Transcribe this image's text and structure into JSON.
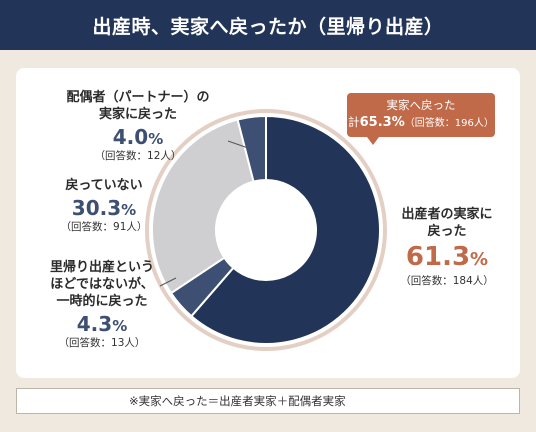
{
  "title": "出産時、実家へ戻ったか（里帰り出産）",
  "footnote": "※実家へ戻った＝出産者実家＋配偶者実家",
  "callout": {
    "label": "実家へ戻った",
    "prefix": "計",
    "pct": "65.3%",
    "count": "（回答数：196人）"
  },
  "colors": {
    "navy": "#223458",
    "slate": "#3d4f72",
    "gray": "#cfcfd1",
    "accent": "#c06a4a",
    "ring": "#e4cfc4"
  },
  "chart_data": {
    "type": "pie",
    "variant": "donut",
    "title": "出産時、実家へ戻ったか（里帰り出産）",
    "slices": [
      {
        "label": "出産者の実家に戻った",
        "value": 61.3,
        "count": "（回答数：184人）",
        "color": "#223458"
      },
      {
        "label": "里帰り出産というほどではないが、一時的に戻った",
        "value": 4.3,
        "count": "（回答数：13人）",
        "color": "#3d4f72"
      },
      {
        "label": "戻っていない",
        "value": 30.3,
        "count": "（回答数：91人）",
        "color": "#cfcfd1"
      },
      {
        "label": "配偶者（パートナー）の実家に戻った",
        "value": 4.0,
        "count": "（回答数：12人）",
        "color": "#3d4f72"
      }
    ],
    "display": {
      "s0": {
        "line1": "出産者の実家に",
        "line2": "戻った",
        "pct_num": "61.3",
        "unit": "%"
      },
      "s1": {
        "line1": "里帰り出産という",
        "line2": "ほどではないが、",
        "line3": "一時的に戻った",
        "pct_num": "4.3",
        "unit": "%"
      },
      "s2": {
        "line1": "戻っていない",
        "pct_num": "30.3",
        "unit": "%"
      },
      "s3": {
        "line1": "配偶者（パートナー）の",
        "line2": "実家に戻った",
        "pct_num": "4.0",
        "unit": "%"
      }
    }
  }
}
